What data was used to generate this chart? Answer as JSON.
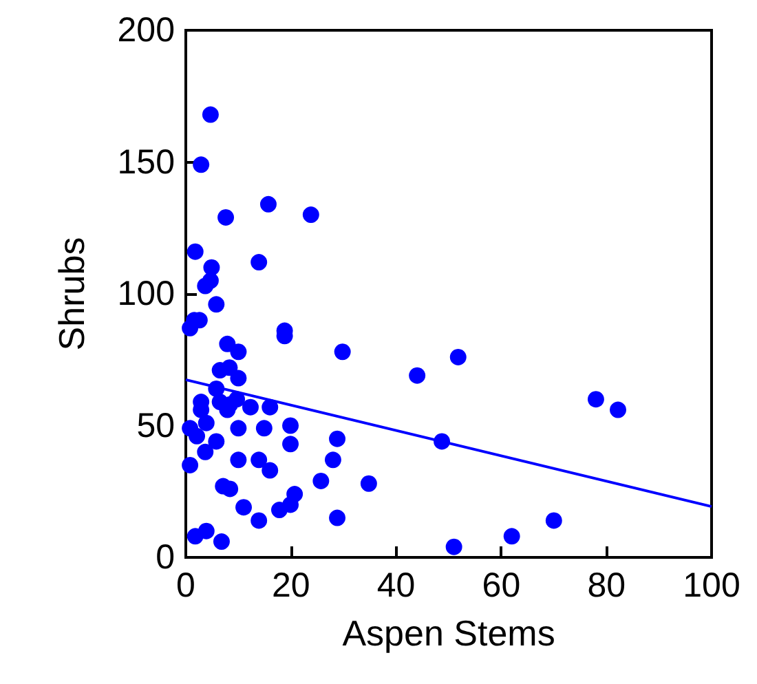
{
  "chart_data": {
    "type": "scatter",
    "xlabel": "Aspen Stems",
    "ylabel": "Shrubs",
    "xlim": [
      0,
      100
    ],
    "ylim": [
      0,
      200
    ],
    "xticks": [
      0,
      20,
      40,
      60,
      80,
      100
    ],
    "yticks": [
      0,
      50,
      100,
      150,
      200
    ],
    "grid": false,
    "marker": "circle",
    "series": [
      {
        "color": "#0000ff",
        "x": [
          4.7,
          2.9,
          7.6,
          15.7,
          23.8,
          13.9,
          1.8,
          4.9,
          4.7,
          3.7,
          5.8,
          1.6,
          2.6,
          18.8,
          0.8,
          18.8,
          7.9,
          10,
          29.8,
          6.5,
          8.3,
          10,
          44,
          5.8,
          2.9,
          6.5,
          7.9,
          9.7,
          8.4,
          12.3,
          16,
          2.9,
          3.9,
          0.8,
          2.1,
          5.8,
          3.7,
          10,
          14.9,
          19.9,
          19.9,
          28.8,
          48.7,
          0.8,
          10,
          13.9,
          16,
          28,
          25.7,
          34.8,
          7.1,
          8.4,
          20.7,
          19.9,
          17.8,
          11,
          13.9,
          28.8,
          1.8,
          3.9,
          6.8,
          51.8,
          78,
          82.2,
          51,
          62,
          70
        ],
        "values": [
          168,
          149,
          129,
          134,
          130,
          112,
          116,
          110,
          105,
          103,
          96,
          90,
          90,
          86,
          87,
          84,
          81,
          78,
          78,
          71,
          72,
          68,
          69,
          64,
          59,
          59,
          56,
          60,
          58,
          57,
          57,
          56,
          51,
          49,
          46,
          44,
          40,
          49,
          49,
          50,
          43,
          45,
          44,
          35,
          37,
          37,
          33,
          37,
          29,
          28,
          27,
          26,
          24,
          20,
          18,
          19,
          14,
          15,
          8,
          10,
          6,
          76,
          60,
          56,
          4,
          8,
          14
        ]
      },
      {
        "type": "line",
        "color": "#0000ff",
        "x": [
          0,
          100
        ],
        "values": [
          67.4,
          19.3
        ],
        "marker": "none"
      }
    ]
  }
}
